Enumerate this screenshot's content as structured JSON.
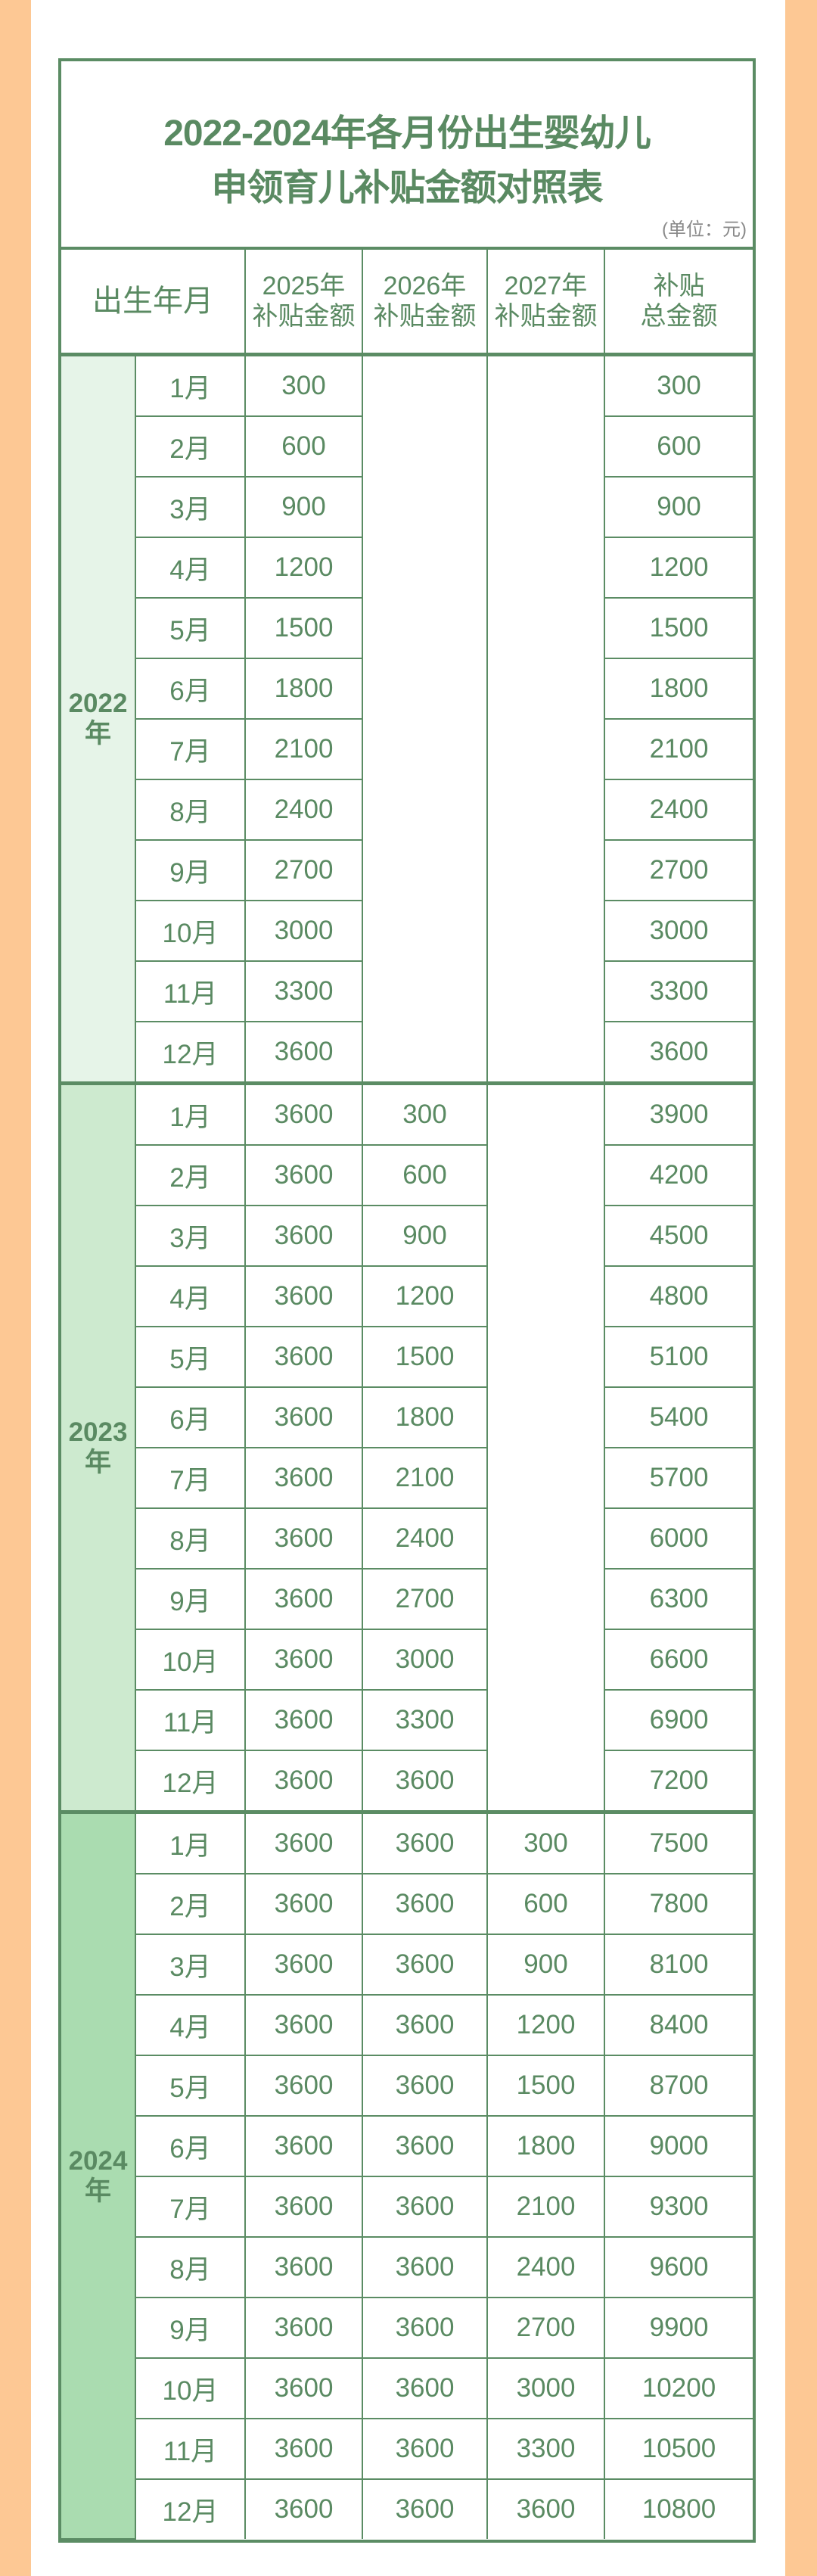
{
  "title_line1": "2022-2024年各月份出生婴幼儿",
  "title_line2": "申领育儿补贴金额对照表",
  "unit": "(单位：元)",
  "headers": {
    "birth_month": "出生年月",
    "col2025": [
      "2025年",
      "补贴金额"
    ],
    "col2026": [
      "2026年",
      "补贴金额"
    ],
    "col2027": [
      "2027年",
      "补贴金额"
    ],
    "total": [
      "补贴",
      "总金额"
    ]
  },
  "colors": {
    "text": "#5a8a62",
    "border": "#5b8c64",
    "side": "#fdc894",
    "year2022": "#e6f4e8",
    "year2023": "#cdeacf",
    "year2024": "#aadcb0"
  },
  "groups": [
    {
      "year": "2022",
      "suffix": "年",
      "rows": [
        [
          "1月",
          "300",
          null,
          null,
          "300"
        ],
        [
          "2月",
          "600",
          null,
          null,
          "600"
        ],
        [
          "3月",
          "900",
          null,
          null,
          "900"
        ],
        [
          "4月",
          "1200",
          null,
          null,
          "1200"
        ],
        [
          "5月",
          "1500",
          null,
          null,
          "1500"
        ],
        [
          "6月",
          "1800",
          null,
          null,
          "1800"
        ],
        [
          "7月",
          "2100",
          null,
          null,
          "2100"
        ],
        [
          "8月",
          "2400",
          null,
          null,
          "2400"
        ],
        [
          "9月",
          "2700",
          null,
          null,
          "2700"
        ],
        [
          "10月",
          "3000",
          null,
          null,
          "3000"
        ],
        [
          "11月",
          "3300",
          null,
          null,
          "3300"
        ],
        [
          "12月",
          "3600",
          null,
          null,
          "3600"
        ]
      ]
    },
    {
      "year": "2023",
      "suffix": "年",
      "rows": [
        [
          "1月",
          "3600",
          "300",
          null,
          "3900"
        ],
        [
          "2月",
          "3600",
          "600",
          null,
          "4200"
        ],
        [
          "3月",
          "3600",
          "900",
          null,
          "4500"
        ],
        [
          "4月",
          "3600",
          "1200",
          null,
          "4800"
        ],
        [
          "5月",
          "3600",
          "1500",
          null,
          "5100"
        ],
        [
          "6月",
          "3600",
          "1800",
          null,
          "5400"
        ],
        [
          "7月",
          "3600",
          "2100",
          null,
          "5700"
        ],
        [
          "8月",
          "3600",
          "2400",
          null,
          "6000"
        ],
        [
          "9月",
          "3600",
          "2700",
          null,
          "6300"
        ],
        [
          "10月",
          "3600",
          "3000",
          null,
          "6600"
        ],
        [
          "11月",
          "3600",
          "3300",
          null,
          "6900"
        ],
        [
          "12月",
          "3600",
          "3600",
          null,
          "7200"
        ]
      ]
    },
    {
      "year": "2024",
      "suffix": "年",
      "rows": [
        [
          "1月",
          "3600",
          "3600",
          "300",
          "7500"
        ],
        [
          "2月",
          "3600",
          "3600",
          "600",
          "7800"
        ],
        [
          "3月",
          "3600",
          "3600",
          "900",
          "8100"
        ],
        [
          "4月",
          "3600",
          "3600",
          "1200",
          "8400"
        ],
        [
          "5月",
          "3600",
          "3600",
          "1500",
          "8700"
        ],
        [
          "6月",
          "3600",
          "3600",
          "1800",
          "9000"
        ],
        [
          "7月",
          "3600",
          "3600",
          "2100",
          "9300"
        ],
        [
          "8月",
          "3600",
          "3600",
          "2400",
          "9600"
        ],
        [
          "9月",
          "3600",
          "3600",
          "2700",
          "9900"
        ],
        [
          "10月",
          "3600",
          "3600",
          "3000",
          "10200"
        ],
        [
          "11月",
          "3600",
          "3600",
          "3300",
          "10500"
        ],
        [
          "12月",
          "3600",
          "3600",
          "3600",
          "10800"
        ]
      ]
    }
  ]
}
